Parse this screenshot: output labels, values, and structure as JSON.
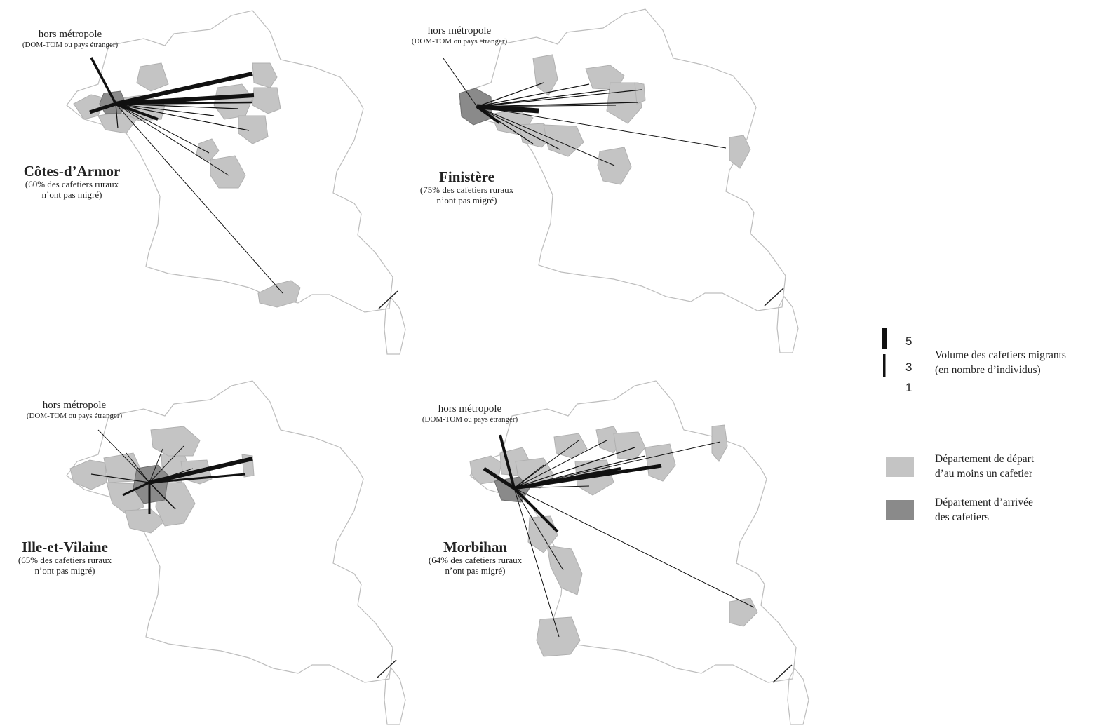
{
  "outside_label": "hors métropole",
  "outside_sub": "(DOM-TOM ou pays étranger)",
  "maps": [
    {
      "dept": "Côtes-d’Armor",
      "pct_line1": "(60% des cafetiers ruraux",
      "pct_line2": "n’ont pas migré)"
    },
    {
      "dept": "Finistère",
      "pct_line1": "(75% des cafetiers ruraux",
      "pct_line2": "n’ont pas migré)"
    },
    {
      "dept": "Ille-et-Vilaine",
      "pct_line1": "(65% des cafetiers ruraux",
      "pct_line2": "n’ont pas migré)"
    },
    {
      "dept": "Morbihan",
      "pct_line1": "(64% des cafetiers ruraux",
      "pct_line2": "n’ont pas migré)"
    }
  ],
  "legend": {
    "volume_values": [
      "5",
      "3",
      "1"
    ],
    "volume_line1": "Volume des cafetiers migrants",
    "volume_line2": "(en nombre d’individus)",
    "depart_line1": "Département de départ",
    "depart_line2": "d’au moins un cafetier",
    "arrivee_line1": "Département d’arrivée",
    "arrivee_line2": "des cafetiers"
  },
  "colors": {
    "departure": "#c4c4c4",
    "arrival": "#8a8a8a",
    "flow": "#111111",
    "outline": "#bdbdbd"
  }
}
